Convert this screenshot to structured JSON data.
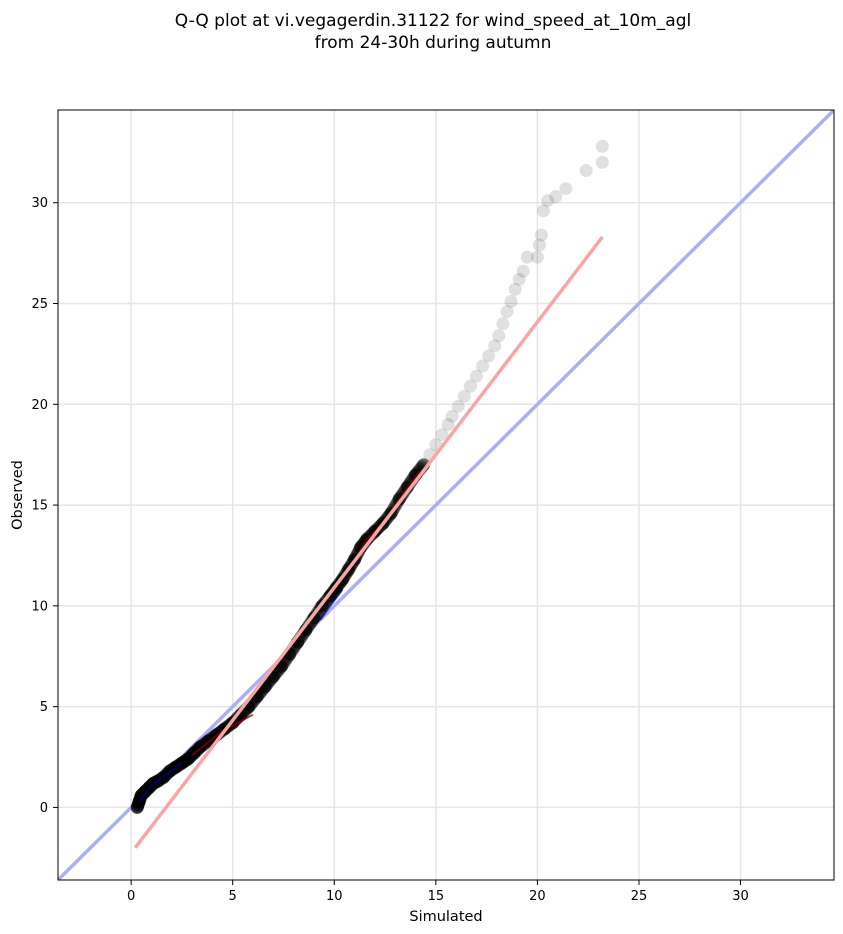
{
  "chart_data": {
    "type": "scatter",
    "title": "Q-Q plot at vi.vegagerdin.31122 for wind_speed_at_10m_agl",
    "subtitle": "from 24-30h during autumn",
    "xlabel": "Simulated",
    "ylabel": "Observed",
    "xlim": [
      -3.6,
      34.6
    ],
    "ylim": [
      -3.6,
      34.6
    ],
    "xticks": [
      0,
      5,
      10,
      15,
      20,
      25,
      30
    ],
    "yticks": [
      0,
      5,
      10,
      15,
      20,
      25,
      30
    ],
    "grid": true,
    "colors": {
      "points": "#000000",
      "identity_line": "#aab0f5",
      "fit_line": "#f7a6a6",
      "dense_core_low": "#00008b",
      "dense_core_mid": "#8b0000"
    },
    "identity_line": {
      "x": [
        -3.6,
        34.6
      ],
      "y": [
        -3.6,
        34.6
      ]
    },
    "fit_line": {
      "x": [
        0.2,
        23.2
      ],
      "y": [
        -2.0,
        28.3
      ]
    },
    "points": {
      "x": [
        0.3,
        0.4,
        0.5,
        0.7,
        0.9,
        1.1,
        1.3,
        1.6,
        1.9,
        2.2,
        2.5,
        2.8,
        3.1,
        3.4,
        3.8,
        4.2,
        4.6,
        5.0,
        5.4,
        5.8,
        6.2,
        6.6,
        7.0,
        7.4,
        7.8,
        8.2,
        8.6,
        9.0,
        9.4,
        9.8,
        10.1,
        10.4,
        10.7,
        11.0,
        11.3,
        11.6,
        12.0,
        12.4,
        12.8,
        13.2,
        13.6,
        14.0,
        14.4,
        14.7,
        15.0,
        15.3,
        15.6,
        15.8,
        16.1,
        16.4,
        16.7,
        17.0,
        17.3,
        17.6,
        17.9,
        18.1,
        18.3,
        18.5,
        18.7,
        18.9,
        19.1,
        19.3,
        19.5,
        20.0,
        20.1,
        20.2,
        20.3,
        20.5,
        20.9,
        21.4,
        22.4,
        23.2
      ],
      "y": [
        0.0,
        0.3,
        0.6,
        0.8,
        1.0,
        1.2,
        1.3,
        1.5,
        1.8,
        2.0,
        2.2,
        2.4,
        2.7,
        3.0,
        3.3,
        3.6,
        3.9,
        4.2,
        4.6,
        5.0,
        5.5,
        6.0,
        6.5,
        7.0,
        7.6,
        8.2,
        8.8,
        9.4,
        10.0,
        10.5,
        10.9,
        11.3,
        11.8,
        12.3,
        12.9,
        13.3,
        13.7,
        14.1,
        14.6,
        15.3,
        15.9,
        16.5,
        17.0,
        17.5,
        18.0,
        18.5,
        19.0,
        19.4,
        19.9,
        20.4,
        20.9,
        21.4,
        21.9,
        22.4,
        22.9,
        23.4,
        24.0,
        24.6,
        25.1,
        25.7,
        26.2,
        26.6,
        27.3,
        27.3,
        27.9,
        28.4,
        29.6,
        30.1,
        30.3,
        30.7,
        31.6,
        32.0
      ],
      "extra_top": {
        "x": [
          23.2
        ],
        "y": [
          32.8
        ]
      }
    }
  }
}
